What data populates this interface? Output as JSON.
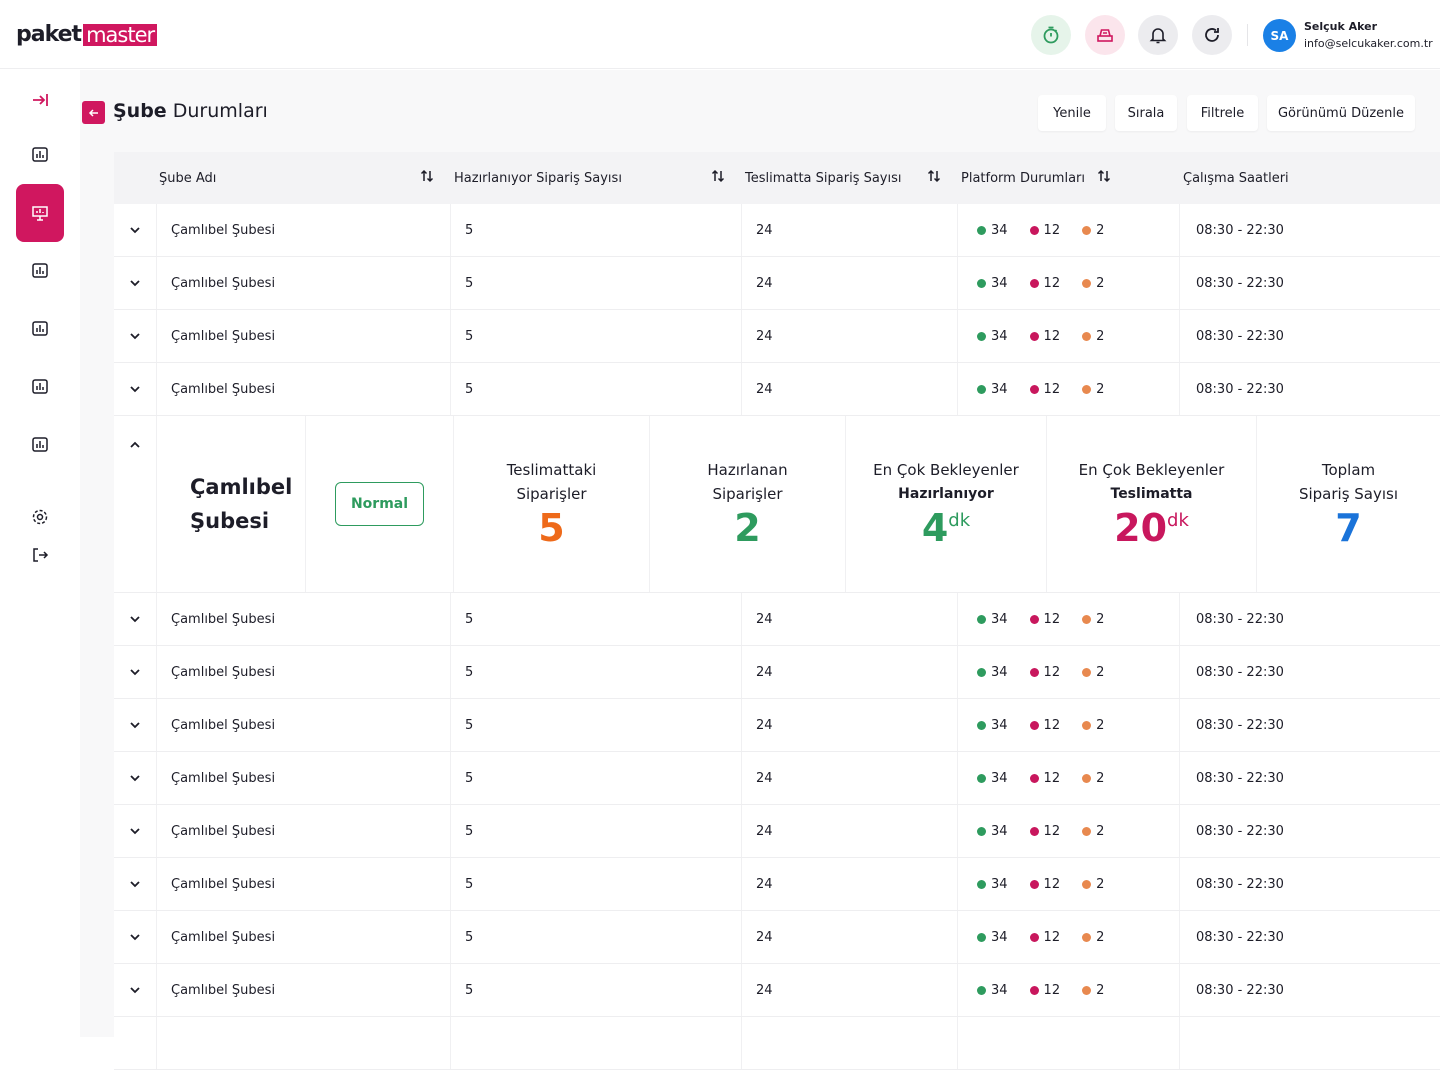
{
  "header": {
    "logo_main": "paket",
    "logo_accent": "master",
    "user_initials": "SA",
    "user_name": "Selçuk Aker",
    "user_email": "info@selcukaker.com.tr"
  },
  "page": {
    "title_bold": "Şube",
    "title_rest": "Durumları",
    "buttons": [
      "Yenile",
      "Sırala",
      "Filtrele",
      "Görünümü Düzenle"
    ]
  },
  "table": {
    "columns": [
      "Şube Adı",
      "Hazırlanıyor Sipariş Sayısı",
      "Teslimatta Sipariş Sayısı",
      "Platform Durumları",
      "Çalışma Saatleri"
    ],
    "rows_before": [
      {
        "name": "Çamlıbel Şubesi",
        "preparing": 5,
        "delivering": 24,
        "platforms": [
          34,
          12,
          2
        ],
        "hours": "08:30 - 22:30"
      },
      {
        "name": "Çamlıbel Şubesi",
        "preparing": 5,
        "delivering": 24,
        "platforms": [
          34,
          12,
          2
        ],
        "hours": "08:30 - 22:30"
      },
      {
        "name": "Çamlıbel Şubesi",
        "preparing": 5,
        "delivering": 24,
        "platforms": [
          34,
          12,
          2
        ],
        "hours": "08:30 - 22:30"
      },
      {
        "name": "Çamlıbel Şubesi",
        "preparing": 5,
        "delivering": 24,
        "platforms": [
          34,
          12,
          2
        ],
        "hours": "08:30 - 22:30"
      }
    ],
    "expanded": {
      "name": "Çamlıbel Şubesi",
      "status": "Normal",
      "stats": [
        {
          "label": "Teslimattaki Siparişler",
          "value": 5
        },
        {
          "label": "Hazırlanan Siparişler",
          "value": 2
        },
        {
          "label": "En Çok Bekleyenler",
          "sublabel": "Hazırlanıyor",
          "value": 4,
          "unit": "dk"
        },
        {
          "label": "En Çok Bekleyenler",
          "sublabel": "Teslimatta",
          "value": 20,
          "unit": "dk"
        },
        {
          "label": "Toplam Sipariş Sayısı",
          "value": 7
        }
      ]
    },
    "rows_after": [
      {
        "name": "Çamlıbel Şubesi",
        "preparing": 5,
        "delivering": 24,
        "platforms": [
          34,
          12,
          2
        ],
        "hours": "08:30 - 22:30"
      },
      {
        "name": "Çamlıbel Şubesi",
        "preparing": 5,
        "delivering": 24,
        "platforms": [
          34,
          12,
          2
        ],
        "hours": "08:30 - 22:30"
      },
      {
        "name": "Çamlıbel Şubesi",
        "preparing": 5,
        "delivering": 24,
        "platforms": [
          34,
          12,
          2
        ],
        "hours": "08:30 - 22:30"
      },
      {
        "name": "Çamlıbel Şubesi",
        "preparing": 5,
        "delivering": 24,
        "platforms": [
          34,
          12,
          2
        ],
        "hours": "08:30 - 22:30"
      },
      {
        "name": "Çamlıbel Şubesi",
        "preparing": 5,
        "delivering": 24,
        "platforms": [
          34,
          12,
          2
        ],
        "hours": "08:30 - 22:30"
      },
      {
        "name": "Çamlıbel Şubesi",
        "preparing": 5,
        "delivering": 24,
        "platforms": [
          34,
          12,
          2
        ],
        "hours": "08:30 - 22:30"
      },
      {
        "name": "Çamlıbel Şubesi",
        "preparing": 5,
        "delivering": 24,
        "platforms": [
          34,
          12,
          2
        ],
        "hours": "08:30 - 22:30"
      },
      {
        "name": "Çamlıbel Şubesi",
        "preparing": 5,
        "delivering": 24,
        "platforms": [
          34,
          12,
          2
        ],
        "hours": "08:30 - 22:30"
      }
    ]
  }
}
